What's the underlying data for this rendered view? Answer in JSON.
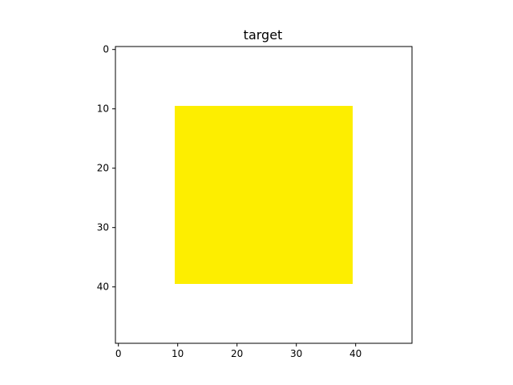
{
  "chart_data": {
    "type": "heatmap",
    "title": "target",
    "xlabel": "",
    "ylabel": "",
    "image_shape": [
      50,
      50
    ],
    "background_color": "#ffffff",
    "fill_color": "#fdee00",
    "filled_region": {
      "rows": [
        10,
        39
      ],
      "cols": [
        10,
        39
      ]
    },
    "xlim": [
      -0.5,
      49.5
    ],
    "ylim": [
      49.5,
      -0.5
    ],
    "xticks": [
      0,
      10,
      20,
      30,
      40
    ],
    "yticks": [
      0,
      10,
      20,
      30,
      40
    ],
    "xtick_labels": [
      "0",
      "10",
      "20",
      "30",
      "40"
    ],
    "ytick_labels": [
      "0",
      "10",
      "20",
      "30",
      "40"
    ],
    "grid": false,
    "legend": "none"
  }
}
